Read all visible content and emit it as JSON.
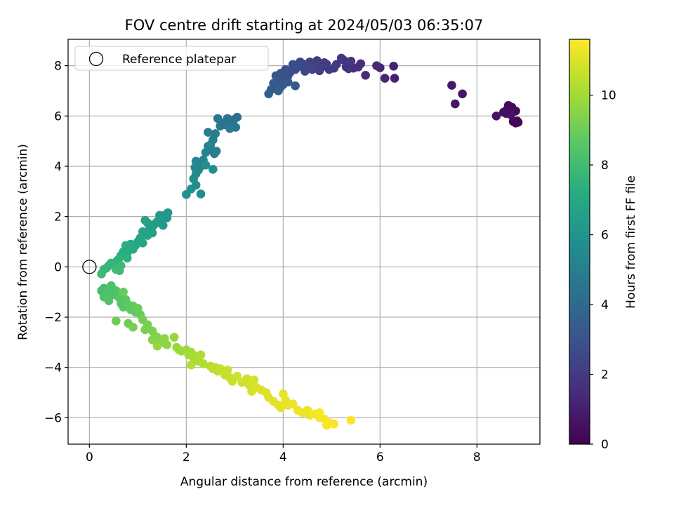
{
  "chart_data": {
    "type": "scatter",
    "title": "FOV centre drift starting at 2024/05/03 06:35:07",
    "xlabel": "Angular distance from reference (arcmin)",
    "ylabel": "Rotation from reference (arcmin)",
    "xlim": [
      -0.44,
      9.3
    ],
    "ylim": [
      -7.05,
      9.05
    ],
    "x_ticks": [
      0,
      2,
      4,
      6,
      8
    ],
    "y_ticks": [
      -6,
      -4,
      -2,
      0,
      2,
      4,
      6,
      8
    ],
    "x_tick_labels": [
      "0",
      "2",
      "4",
      "6",
      "8"
    ],
    "y_tick_labels": [
      "−6",
      "−4",
      "−2",
      "0",
      "2",
      "4",
      "6",
      "8"
    ],
    "grid": true,
    "legend_location": "upper-left",
    "legend": [
      {
        "label": "Reference platepar",
        "marker": "open-circle",
        "x": 0,
        "y": 0
      }
    ],
    "colorbar": {
      "label": "Hours from first FF file",
      "colormap": "viridis",
      "range": [
        0,
        11.6
      ],
      "ticks": [
        0,
        2,
        4,
        6,
        8,
        10
      ],
      "tick_labels": [
        "0",
        "2",
        "4",
        "6",
        "8",
        "10"
      ]
    },
    "points": [
      [
        8.85,
        5.75,
        0.0
      ],
      [
        8.8,
        5.72,
        0.08
      ],
      [
        8.75,
        5.78,
        0.15
      ],
      [
        8.83,
        5.8,
        0.2
      ],
      [
        8.8,
        6.2,
        0.25
      ],
      [
        8.72,
        6.35,
        0.3
      ],
      [
        8.65,
        6.42,
        0.35
      ],
      [
        8.62,
        6.25,
        0.4
      ],
      [
        8.55,
        6.15,
        0.45
      ],
      [
        8.6,
        6.1,
        0.5
      ],
      [
        8.7,
        6.05,
        0.55
      ],
      [
        8.4,
        6.0,
        0.6
      ],
      [
        7.7,
        6.88,
        0.7
      ],
      [
        7.55,
        6.48,
        0.78
      ],
      [
        7.48,
        7.22,
        0.85
      ],
      [
        6.3,
        7.5,
        1.1
      ],
      [
        6.28,
        7.98,
        1.15
      ],
      [
        6.1,
        7.5,
        1.2
      ],
      [
        6.0,
        7.92,
        1.25
      ],
      [
        5.93,
        8.0,
        1.3
      ],
      [
        5.7,
        7.62,
        1.45
      ],
      [
        5.6,
        8.08,
        1.5
      ],
      [
        5.55,
        7.95,
        1.55
      ],
      [
        5.45,
        7.9,
        1.6
      ],
      [
        5.35,
        7.88,
        1.65
      ],
      [
        5.3,
        7.95,
        1.7
      ],
      [
        5.4,
        8.18,
        1.75
      ],
      [
        5.25,
        8.22,
        1.8
      ],
      [
        5.2,
        8.3,
        1.85
      ],
      [
        5.1,
        8.05,
        1.9
      ],
      [
        5.05,
        7.9,
        1.95
      ],
      [
        4.95,
        7.85,
        2.0
      ],
      [
        4.9,
        8.05,
        2.05
      ],
      [
        4.85,
        8.12,
        2.1
      ],
      [
        4.8,
        7.95,
        2.15
      ],
      [
        4.75,
        7.8,
        2.2
      ],
      [
        4.7,
        8.2,
        2.25
      ],
      [
        4.65,
        8.05,
        2.3
      ],
      [
        4.6,
        7.85,
        2.35
      ],
      [
        4.55,
        8.15,
        2.4
      ],
      [
        4.5,
        7.95,
        2.45
      ],
      [
        4.45,
        7.78,
        2.5
      ],
      [
        4.4,
        8.08,
        2.55
      ],
      [
        4.35,
        8.15,
        2.6
      ],
      [
        4.3,
        7.95,
        2.65
      ],
      [
        4.25,
        7.85,
        2.7
      ],
      [
        4.2,
        8.05,
        2.75
      ],
      [
        4.15,
        7.75,
        2.8
      ],
      [
        4.1,
        7.6,
        2.85
      ],
      [
        4.05,
        7.85,
        2.9
      ],
      [
        4.0,
        7.55,
        2.95
      ],
      [
        3.95,
        7.7,
        3.0
      ],
      [
        3.9,
        7.45,
        3.05
      ],
      [
        3.85,
        7.6,
        3.1
      ],
      [
        4.0,
        7.25,
        3.15
      ],
      [
        3.95,
        7.15,
        3.2
      ],
      [
        4.1,
        7.35,
        3.25
      ],
      [
        4.25,
        7.2,
        3.3
      ],
      [
        3.85,
        7.1,
        3.35
      ],
      [
        3.8,
        7.3,
        3.4
      ],
      [
        3.75,
        7.05,
        3.45
      ],
      [
        3.7,
        6.88,
        3.55
      ],
      [
        3.9,
        7.0,
        3.6
      ],
      [
        3.05,
        5.95,
        4.3
      ],
      [
        2.98,
        5.85,
        4.35
      ],
      [
        2.92,
        5.75,
        4.4
      ],
      [
        2.85,
        5.9,
        4.45
      ],
      [
        2.8,
        5.65,
        4.5
      ],
      [
        2.75,
        5.72,
        4.55
      ],
      [
        2.7,
        5.6,
        4.6
      ],
      [
        2.65,
        5.9,
        4.65
      ],
      [
        3.02,
        5.55,
        4.7
      ],
      [
        2.9,
        5.5,
        4.75
      ],
      [
        2.6,
        5.3,
        4.8
      ],
      [
        2.55,
        5.05,
        4.85
      ],
      [
        2.5,
        4.85,
        4.9
      ],
      [
        2.45,
        5.35,
        4.95
      ],
      [
        2.62,
        4.6,
        5.0
      ],
      [
        2.58,
        4.5,
        5.05
      ],
      [
        2.5,
        4.65,
        5.1
      ],
      [
        2.45,
        4.8,
        5.15
      ],
      [
        2.4,
        4.55,
        5.2
      ],
      [
        2.35,
        4.25,
        5.25
      ],
      [
        2.3,
        4.0,
        5.3
      ],
      [
        2.25,
        3.85,
        5.35
      ],
      [
        2.2,
        4.2,
        5.4
      ],
      [
        2.18,
        3.95,
        5.45
      ],
      [
        2.2,
        3.7,
        5.5
      ],
      [
        2.15,
        3.5,
        5.55
      ],
      [
        2.4,
        4.05,
        5.6
      ],
      [
        2.55,
        3.88,
        5.65
      ],
      [
        2.2,
        3.25,
        5.7
      ],
      [
        2.3,
        2.9,
        5.75
      ],
      [
        2.1,
        3.1,
        5.85
      ],
      [
        2.0,
        2.88,
        5.9
      ],
      [
        1.62,
        2.15,
        6.1
      ],
      [
        1.6,
        1.95,
        6.15
      ],
      [
        1.55,
        2.05,
        6.2
      ],
      [
        1.5,
        1.9,
        6.25
      ],
      [
        1.45,
        2.05,
        6.3
      ],
      [
        1.52,
        1.65,
        6.35
      ],
      [
        1.4,
        1.8,
        6.4
      ],
      [
        1.35,
        1.7,
        6.45
      ],
      [
        1.3,
        1.6,
        6.5
      ],
      [
        1.25,
        1.55,
        6.55
      ],
      [
        1.2,
        1.75,
        6.6
      ],
      [
        1.15,
        1.85,
        6.65
      ],
      [
        1.3,
        1.35,
        6.7
      ],
      [
        1.2,
        1.25,
        6.75
      ],
      [
        1.1,
        1.4,
        6.8
      ],
      [
        1.05,
        1.15,
        6.85
      ],
      [
        1.1,
        0.95,
        6.9
      ],
      [
        1.0,
        1.0,
        6.95
      ],
      [
        0.95,
        0.85,
        7.0
      ],
      [
        0.9,
        0.7,
        7.05
      ],
      [
        0.85,
        0.9,
        7.1
      ],
      [
        0.8,
        0.75,
        7.15
      ],
      [
        0.78,
        0.55,
        7.2
      ],
      [
        0.75,
        0.85,
        7.25
      ],
      [
        0.7,
        0.6,
        7.3
      ],
      [
        0.65,
        0.45,
        7.35
      ],
      [
        0.78,
        0.35,
        7.4
      ],
      [
        0.6,
        0.3,
        7.45
      ],
      [
        0.55,
        0.2,
        7.5
      ],
      [
        0.5,
        0.1,
        7.55
      ],
      [
        0.45,
        0.15,
        7.6
      ],
      [
        0.4,
        0.05,
        7.65
      ],
      [
        0.35,
        -0.05,
        7.7
      ],
      [
        0.3,
        -0.1,
        7.75
      ],
      [
        0.65,
        0.05,
        7.8
      ],
      [
        0.55,
        -0.1,
        7.85
      ],
      [
        0.25,
        -0.28,
        7.9
      ],
      [
        0.62,
        -0.15,
        7.95
      ],
      [
        0.3,
        -0.85,
        8.05
      ],
      [
        0.25,
        -0.95,
        8.1
      ],
      [
        0.35,
        -1.05,
        8.15
      ],
      [
        0.4,
        -0.9,
        8.2
      ],
      [
        0.45,
        -0.75,
        8.25
      ],
      [
        0.5,
        -1.1,
        8.3
      ],
      [
        0.55,
        -0.95,
        8.35
      ],
      [
        0.3,
        -1.2,
        8.4
      ],
      [
        0.4,
        -1.35,
        8.45
      ],
      [
        0.6,
        -1.2,
        8.5
      ],
      [
        0.65,
        -1.45,
        8.55
      ],
      [
        0.7,
        -1.6,
        8.6
      ],
      [
        0.75,
        -1.3,
        8.65
      ],
      [
        0.8,
        -1.5,
        8.7
      ],
      [
        0.85,
        -1.7,
        8.75
      ],
      [
        0.9,
        -1.55,
        8.8
      ],
      [
        0.95,
        -1.8,
        8.85
      ],
      [
        1.0,
        -1.65,
        8.9
      ],
      [
        1.05,
        -1.9,
        8.95
      ],
      [
        0.7,
        -1.0,
        9.0
      ],
      [
        0.55,
        -2.15,
        9.02
      ],
      [
        0.8,
        -2.25,
        9.05
      ],
      [
        0.9,
        -2.4,
        9.1
      ],
      [
        1.1,
        -2.1,
        9.15
      ],
      [
        1.2,
        -2.3,
        9.2
      ],
      [
        1.15,
        -2.5,
        9.25
      ],
      [
        1.3,
        -2.55,
        9.3
      ],
      [
        1.35,
        -2.75,
        9.35
      ],
      [
        1.4,
        -2.8,
        9.4
      ],
      [
        1.45,
        -2.9,
        9.45
      ],
      [
        1.3,
        -2.9,
        9.5
      ],
      [
        1.5,
        -3.0,
        9.55
      ],
      [
        1.55,
        -2.85,
        9.6
      ],
      [
        1.6,
        -3.1,
        9.65
      ],
      [
        1.4,
        -3.15,
        9.7
      ],
      [
        1.75,
        -2.8,
        9.75
      ],
      [
        1.8,
        -3.2,
        9.8
      ],
      [
        1.85,
        -3.3,
        9.85
      ],
      [
        1.9,
        -3.35,
        9.9
      ],
      [
        2.0,
        -3.3,
        9.95
      ],
      [
        2.05,
        -3.5,
        10.0
      ],
      [
        2.1,
        -3.4,
        10.05
      ],
      [
        2.15,
        -3.6,
        10.1
      ],
      [
        2.2,
        -3.55,
        10.12
      ],
      [
        2.25,
        -3.75,
        10.15
      ],
      [
        2.3,
        -3.5,
        10.2
      ],
      [
        2.35,
        -3.85,
        10.25
      ],
      [
        2.1,
        -3.9,
        10.3
      ],
      [
        2.5,
        -3.95,
        10.35
      ],
      [
        2.55,
        -4.05,
        10.4
      ],
      [
        2.6,
        -4.0,
        10.45
      ],
      [
        2.65,
        -4.15,
        10.5
      ],
      [
        2.7,
        -4.05,
        10.55
      ],
      [
        2.8,
        -4.3,
        10.6
      ],
      [
        2.85,
        -4.1,
        10.65
      ],
      [
        2.9,
        -4.4,
        10.7
      ],
      [
        2.95,
        -4.55,
        10.72
      ],
      [
        3.05,
        -4.35,
        10.75
      ],
      [
        3.15,
        -4.6,
        10.8
      ],
      [
        3.25,
        -4.45,
        10.82
      ],
      [
        3.3,
        -4.7,
        10.85
      ],
      [
        3.35,
        -4.95,
        10.88
      ],
      [
        3.4,
        -4.5,
        10.9
      ],
      [
        3.45,
        -4.8,
        10.95
      ],
      [
        3.55,
        -4.9,
        11.0
      ],
      [
        3.65,
        -5.0,
        11.02
      ],
      [
        3.7,
        -5.2,
        11.05
      ],
      [
        3.8,
        -5.35,
        11.1
      ],
      [
        3.9,
        -5.5,
        11.12
      ],
      [
        3.95,
        -5.6,
        11.15
      ],
      [
        4.0,
        -5.05,
        11.18
      ],
      [
        4.05,
        -5.3,
        11.2
      ],
      [
        4.1,
        -5.5,
        11.22
      ],
      [
        4.2,
        -5.45,
        11.25
      ],
      [
        4.3,
        -5.7,
        11.28
      ],
      [
        4.4,
        -5.8,
        11.3
      ],
      [
        4.5,
        -5.7,
        11.32
      ],
      [
        4.55,
        -5.9,
        11.35
      ],
      [
        4.65,
        -5.85,
        11.38
      ],
      [
        4.75,
        -6.0,
        11.42
      ],
      [
        4.85,
        -6.05,
        11.45
      ],
      [
        4.95,
        -6.2,
        11.48
      ],
      [
        5.05,
        -6.25,
        11.5
      ],
      [
        4.9,
        -6.3,
        11.52
      ],
      [
        4.75,
        -5.8,
        11.55
      ],
      [
        5.4,
        -6.1,
        11.58
      ]
    ]
  }
}
